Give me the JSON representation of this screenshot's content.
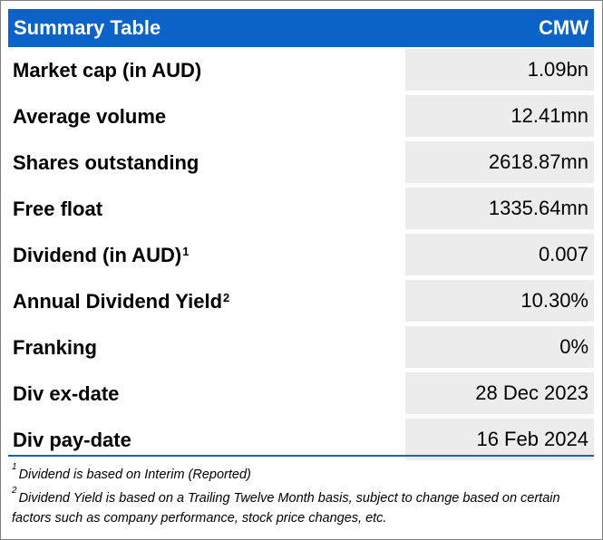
{
  "header": {
    "title": "Summary Table",
    "ticker": "CMW"
  },
  "rows": [
    {
      "label": "Market cap (in AUD)",
      "sup": "",
      "value": "1.09bn"
    },
    {
      "label": "Average volume",
      "sup": "",
      "value": "12.41mn"
    },
    {
      "label": "Shares outstanding",
      "sup": "",
      "value": "2618.87mn"
    },
    {
      "label": "Free float",
      "sup": "",
      "value": "1335.64mn"
    },
    {
      "label": "Dividend (in AUD)",
      "sup": "1",
      "value": "0.007"
    },
    {
      "label": "Annual Dividend Yield",
      "sup": "2",
      "value": "10.30%"
    },
    {
      "label": "Franking",
      "sup": "",
      "value": "0%"
    },
    {
      "label": "Div ex-date",
      "sup": "",
      "value": "28 Dec 2023"
    },
    {
      "label": "Div pay-date",
      "sup": "",
      "value": "16 Feb 2024"
    }
  ],
  "footnotes": [
    {
      "marker": "1",
      "text": "Dividend is based on Interim (Reported)"
    },
    {
      "marker": "2",
      "text": "Dividend Yield is based on a Trailing Twelve Month basis, subject to change based on certain factors such as company performance, stock price changes, etc."
    }
  ],
  "colors": {
    "header_bg": "#0b63c8",
    "value_bg": "#ececec"
  }
}
